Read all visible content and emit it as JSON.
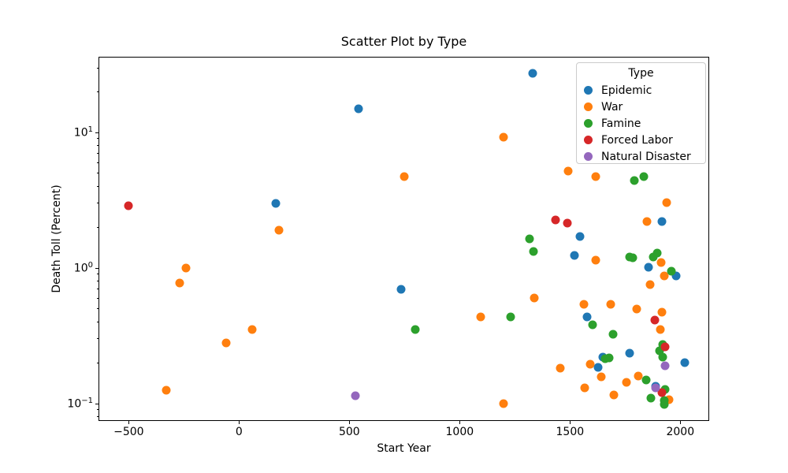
{
  "figure": {
    "title": "Scatter Plot by Type"
  },
  "chart_data": {
    "type": "scatter",
    "title": "Scatter Plot by Type",
    "xlabel": "Start Year",
    "ylabel": "Death Toll (Percent)",
    "x_scale": "linear",
    "y_scale": "log",
    "xlim": [
      -637,
      2131
    ],
    "ylim": [
      0.0745,
      36.2
    ],
    "grid": false,
    "x_ticks": [
      {
        "value": -500,
        "label": "−500"
      },
      {
        "value": 0,
        "label": "0"
      },
      {
        "value": 500,
        "label": "500"
      },
      {
        "value": 1000,
        "label": "1000"
      },
      {
        "value": 1500,
        "label": "1500"
      },
      {
        "value": 2000,
        "label": "2000"
      }
    ],
    "y_ticks": [
      {
        "value": 10,
        "base": "10",
        "exp": "1"
      },
      {
        "value": 1,
        "base": "10",
        "exp": "0"
      },
      {
        "value": 0.1,
        "base": "10",
        "exp": "−1"
      }
    ],
    "y_minor_ticks": [
      0.08,
      0.09,
      0.2,
      0.3,
      0.4,
      0.5,
      0.6,
      0.7,
      0.8,
      0.9,
      2,
      3,
      4,
      5,
      6,
      7,
      8,
      9,
      20,
      30
    ],
    "legend": {
      "title": "Type",
      "position": "upper right",
      "entries": [
        "Epidemic",
        "War",
        "Famine",
        "Forced Labor",
        "Natural Disaster"
      ]
    },
    "marker_size_px": 11,
    "series": [
      {
        "name": "Epidemic",
        "color": "#1f77b4",
        "points": [
          [
            165,
            3.0
          ],
          [
            541,
            15
          ],
          [
            735,
            0.7
          ],
          [
            1331,
            27.3
          ],
          [
            1520,
            1.24
          ],
          [
            1545,
            1.7
          ],
          [
            1576,
            0.435
          ],
          [
            1629,
            0.186
          ],
          [
            1650,
            0.22
          ],
          [
            1772,
            0.237
          ],
          [
            1855,
            1.02
          ],
          [
            1889,
            0.134
          ],
          [
            1918,
            2.2
          ],
          [
            1981,
            0.88
          ],
          [
            2019,
            0.2
          ]
        ]
      },
      {
        "name": "War",
        "color": "#ff7f0e",
        "points": [
          [
            -331,
            0.126
          ],
          [
            -270,
            0.78
          ],
          [
            -240,
            1.0
          ],
          [
            -60,
            0.28
          ],
          [
            60,
            0.35
          ],
          [
            180,
            1.9
          ],
          [
            750,
            4.7
          ],
          [
            1095,
            0.435
          ],
          [
            1200,
            0.1
          ],
          [
            1200,
            9.2
          ],
          [
            1337,
            0.6
          ],
          [
            1455,
            0.183
          ],
          [
            1492,
            5.2
          ],
          [
            1562,
            0.543
          ],
          [
            1568,
            0.13
          ],
          [
            1592,
            0.196
          ],
          [
            1616,
            4.7
          ],
          [
            1618,
            1.14
          ],
          [
            1642,
            0.158
          ],
          [
            1683,
            0.54
          ],
          [
            1700,
            0.116
          ],
          [
            1756,
            0.143
          ],
          [
            1803,
            0.5
          ],
          [
            1810,
            0.16
          ],
          [
            1850,
            2.2
          ],
          [
            1862,
            0.76
          ],
          [
            1910,
            0.35
          ],
          [
            1914,
            1.1
          ],
          [
            1917,
            0.47
          ],
          [
            1927,
            0.88
          ],
          [
            1939,
            3.05
          ],
          [
            1950,
            0.107
          ]
        ]
      },
      {
        "name": "Famine",
        "color": "#2ca02c",
        "points": [
          [
            800,
            0.35
          ],
          [
            1230,
            0.436
          ],
          [
            1315,
            1.65
          ],
          [
            1333,
            1.32
          ],
          [
            1601,
            0.38
          ],
          [
            1660,
            0.215
          ],
          [
            1676,
            0.218
          ],
          [
            1695,
            0.326
          ],
          [
            1770,
            1.2
          ],
          [
            1783,
            1.19
          ],
          [
            1791,
            4.4
          ],
          [
            1836,
            4.7
          ],
          [
            1845,
            0.149
          ],
          [
            1866,
            0.11
          ],
          [
            1876,
            1.21
          ],
          [
            1896,
            1.29
          ],
          [
            1906,
            0.245
          ],
          [
            1920,
            0.274
          ],
          [
            1921,
            0.22
          ],
          [
            1927,
            0.105
          ],
          [
            1929,
            0.099
          ],
          [
            1932,
            0.128
          ],
          [
            1959,
            0.95
          ]
        ]
      },
      {
        "name": "Forced Labor",
        "color": "#d62728",
        "points": [
          [
            -500,
            2.87
          ],
          [
            1434,
            2.26
          ],
          [
            1488,
            2.15
          ],
          [
            1885,
            0.413
          ],
          [
            1915,
            0.12
          ],
          [
            1930,
            0.262
          ]
        ]
      },
      {
        "name": "Natural Disaster",
        "color": "#9467bd",
        "points": [
          [
            526,
            0.115
          ],
          [
            1887,
            0.13
          ],
          [
            1931,
            0.189
          ]
        ]
      }
    ]
  }
}
